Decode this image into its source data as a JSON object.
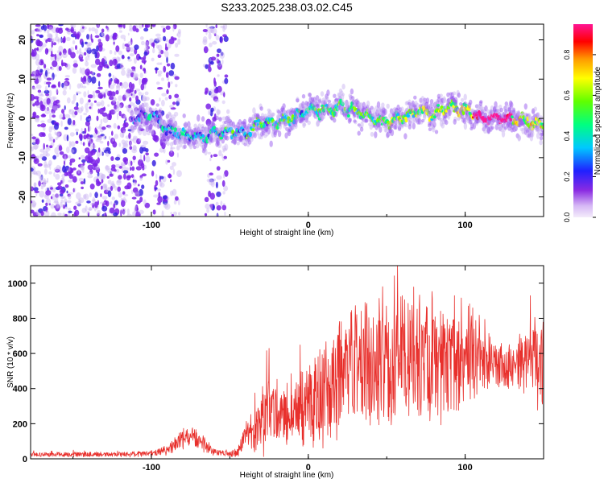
{
  "title": "S233.2025.238.03.02.C45",
  "colors": {
    "axis": "#000000",
    "snr_line": "#e8302c",
    "scatter_low": "#c9b3f2",
    "scatter_mid": "#7b21e8",
    "scatter_high": "#3a25e0"
  },
  "chart_data": [
    {
      "type": "heatmap",
      "name": "spectrogram",
      "xlabel": "Height of straight line (km)",
      "ylabel": "Frequency (Hz)",
      "xlim": [
        -177,
        150
      ],
      "ylim": [
        -25,
        24
      ],
      "xticks": [
        -100,
        0,
        100
      ],
      "yticks": [
        -20,
        -10,
        0,
        10,
        20
      ],
      "ridge_x": [
        -110,
        -100,
        -90,
        -80,
        -70,
        -60,
        -50,
        -40,
        -30,
        -20,
        -10,
        0,
        10,
        20,
        30,
        40,
        50,
        60,
        70,
        80,
        90,
        100,
        110,
        120,
        130,
        140,
        150
      ],
      "ridge_y": [
        0,
        1,
        -3,
        -4,
        -5,
        -4,
        -3,
        -4,
        -1,
        -1,
        0,
        2,
        2,
        3,
        2,
        0,
        -1,
        0,
        2,
        1,
        3,
        2,
        0,
        0,
        0,
        -1,
        -2
      ],
      "colorbar": {
        "label": "Normalized spectral amplitude",
        "range": [
          0,
          0.95
        ],
        "ticks": [
          "0.0",
          "0.2",
          "0.4",
          "0.6",
          "0.8"
        ]
      }
    },
    {
      "type": "line",
      "name": "snr",
      "xlabel": "Height of straight line (km)",
      "ylabel": "SNR (10 * v/v)",
      "xlim": [
        -177,
        150
      ],
      "ylim": [
        0,
        1100
      ],
      "xticks": [
        -100,
        0,
        100
      ],
      "yticks": [
        0,
        200,
        400,
        600,
        800,
        1000
      ],
      "envelope_x": [
        -177,
        -130,
        -100,
        -90,
        -80,
        -75,
        -70,
        -60,
        -50,
        -45,
        -40,
        -35,
        -30,
        -25,
        -20,
        -10,
        0,
        10,
        20,
        30,
        40,
        50,
        60,
        70,
        80,
        90,
        100,
        110,
        115,
        120,
        130,
        140,
        150
      ],
      "envelope_mean": [
        25,
        25,
        30,
        50,
        110,
        140,
        110,
        40,
        25,
        40,
        120,
        180,
        210,
        260,
        240,
        270,
        310,
        350,
        470,
        560,
        530,
        540,
        590,
        600,
        580,
        560,
        570,
        600,
        560,
        530,
        520,
        560,
        540
      ],
      "envelope_spread": [
        12,
        12,
        15,
        30,
        50,
        60,
        50,
        20,
        12,
        30,
        80,
        120,
        170,
        180,
        150,
        180,
        200,
        260,
        330,
        340,
        300,
        320,
        360,
        380,
        360,
        300,
        280,
        200,
        160,
        130,
        120,
        180,
        250
      ]
    }
  ]
}
